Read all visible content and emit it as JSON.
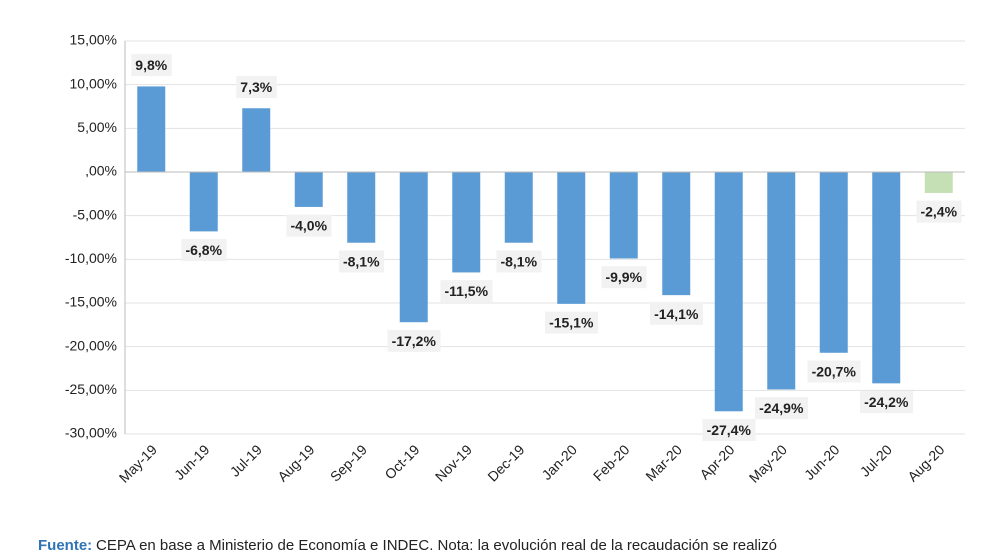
{
  "chart_data": {
    "type": "bar",
    "categories": [
      "May-19",
      "Jun-19",
      "Jul-19",
      "Aug-19",
      "Sep-19",
      "Oct-19",
      "Nov-19",
      "Dec-19",
      "Jan-20",
      "Feb-20",
      "Mar-20",
      "Apr-20",
      "May-20",
      "Jun-20",
      "Jul-20",
      "Aug-20"
    ],
    "values": [
      9.8,
      -6.8,
      7.3,
      -4.0,
      -8.1,
      -17.2,
      -11.5,
      -8.1,
      -15.1,
      -9.9,
      -14.1,
      -27.4,
      -24.9,
      -20.7,
      -24.2,
      -2.4
    ],
    "value_labels": [
      "9,8%",
      "-6,8%",
      "7,3%",
      "-4,0%",
      "-8,1%",
      "-17,2%",
      "-11,5%",
      "-8,1%",
      "-15,1%",
      "-9,9%",
      "-14,1%",
      "-27,4%",
      "-24,9%",
      "-20,7%",
      "-24,2%",
      "-2,4%"
    ],
    "colors": [
      "#5b9bd5",
      "#5b9bd5",
      "#5b9bd5",
      "#5b9bd5",
      "#5b9bd5",
      "#5b9bd5",
      "#5b9bd5",
      "#5b9bd5",
      "#5b9bd5",
      "#5b9bd5",
      "#5b9bd5",
      "#5b9bd5",
      "#5b9bd5",
      "#5b9bd5",
      "#5b9bd5",
      "#c5e0b4"
    ],
    "ylim": [
      -30,
      15
    ],
    "yticks": [
      {
        "value": -30,
        "label": "-30,00%"
      },
      {
        "value": -25,
        "label": "-25,00%"
      },
      {
        "value": -20,
        "label": "-20,00%"
      },
      {
        "value": -15,
        "label": "-15,00%"
      },
      {
        "value": -10,
        "label": "-10,00%"
      },
      {
        "value": -5,
        "label": "-5,00%"
      },
      {
        "value": 0,
        "label": ",00%"
      },
      {
        "value": 5,
        "label": "5,00%"
      },
      {
        "value": 10,
        "label": "10,00%"
      },
      {
        "value": 15,
        "label": "15,00%"
      }
    ],
    "grid": true,
    "source_label": "Fuente:",
    "source_text": "CEPA en base a Ministerio de Economía e INDEC. Nota: la evolución real de la recaudación se realizó"
  }
}
